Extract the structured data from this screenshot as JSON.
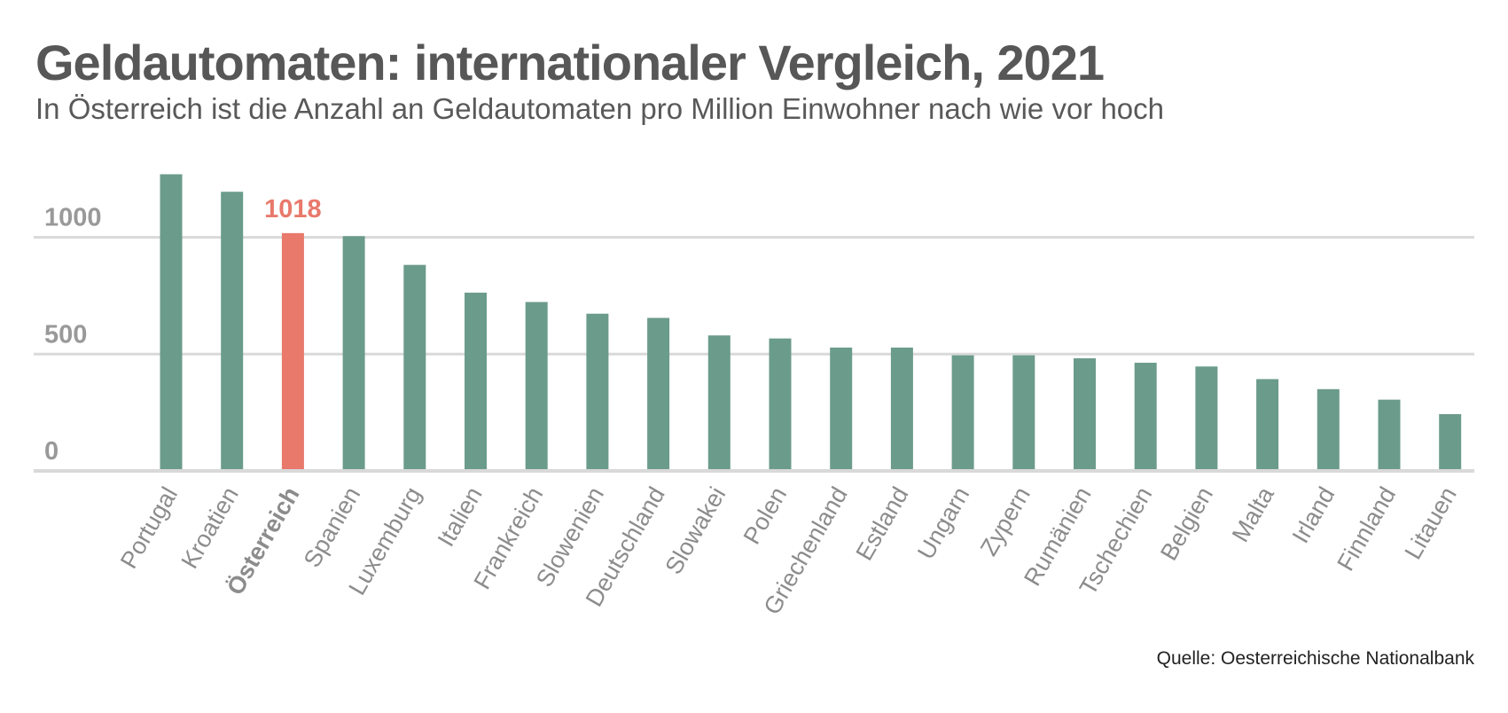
{
  "header": {
    "title": "Geldautomaten: internationaler Vergleich, 2021",
    "subtitle": "In Österreich ist die Anzahl an Geldautomaten pro Million Einwohner nach wie vor hoch"
  },
  "footer": {
    "source": "Quelle: Oesterreichische Nationalbank"
  },
  "colors": {
    "bar": "#6b9b8b",
    "highlight": "#e8796b",
    "grid": "#d9d9d9",
    "tick": "#999999",
    "category": "#8c8c8c"
  },
  "chart_data": {
    "type": "bar",
    "categories": [
      "Portugal",
      "Kroatien",
      "Österreich",
      "Spanien",
      "Luxemburg",
      "Italien",
      "Frankreich",
      "Slowenien",
      "Deutschland",
      "Slowakei",
      "Polen",
      "Griechenland",
      "Estland",
      "Ungarn",
      "Zypern",
      "Rumänien",
      "Tschechien",
      "Belgien",
      "Malta",
      "Irland",
      "Finnland",
      "Litauen"
    ],
    "values": [
      1270,
      1195,
      1018,
      1005,
      882,
      763,
      723,
      673,
      655,
      580,
      567,
      528,
      528,
      495,
      495,
      482,
      463,
      447,
      393,
      350,
      305,
      243
    ],
    "highlight_category": "Österreich",
    "data_labels": [
      {
        "category": "Österreich",
        "text": "1018"
      }
    ],
    "yticks": [
      0,
      500,
      1000
    ],
    "ylim": [
      0,
      1300
    ],
    "grid": true,
    "legend": "none"
  }
}
